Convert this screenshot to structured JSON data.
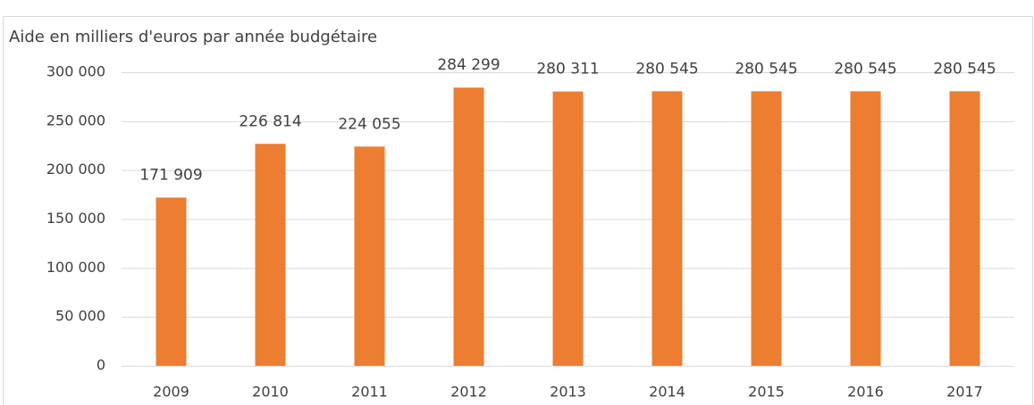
{
  "chart_data": {
    "type": "bar",
    "title": "Aide en milliers d'euros par année budgétaire",
    "categories": [
      "2009",
      "2010",
      "2011",
      "2012",
      "2013",
      "2014",
      "2015",
      "2016",
      "2017"
    ],
    "values": [
      171909,
      226814,
      224055,
      284299,
      280311,
      280545,
      280545,
      280545,
      280545
    ],
    "value_labels": [
      "171 909",
      "226 814",
      "224 055",
      "284 299",
      "280 311",
      "280 545",
      "280 545",
      "280 545",
      "280 545"
    ],
    "color": "#ed7d31",
    "ylim": [
      0,
      300000
    ],
    "yticks": [
      0,
      {
        "value": 50000,
        "label": "50 000"
      },
      {
        "value": 100000,
        "label": "100 000"
      },
      {
        "value": 150000,
        "label": "150 000"
      },
      {
        "value": 200000,
        "label": "200 000"
      },
      {
        "value": 250000,
        "label": "250 000"
      },
      {
        "value": 300000,
        "label": "300 000"
      }
    ],
    "grid": true
  }
}
